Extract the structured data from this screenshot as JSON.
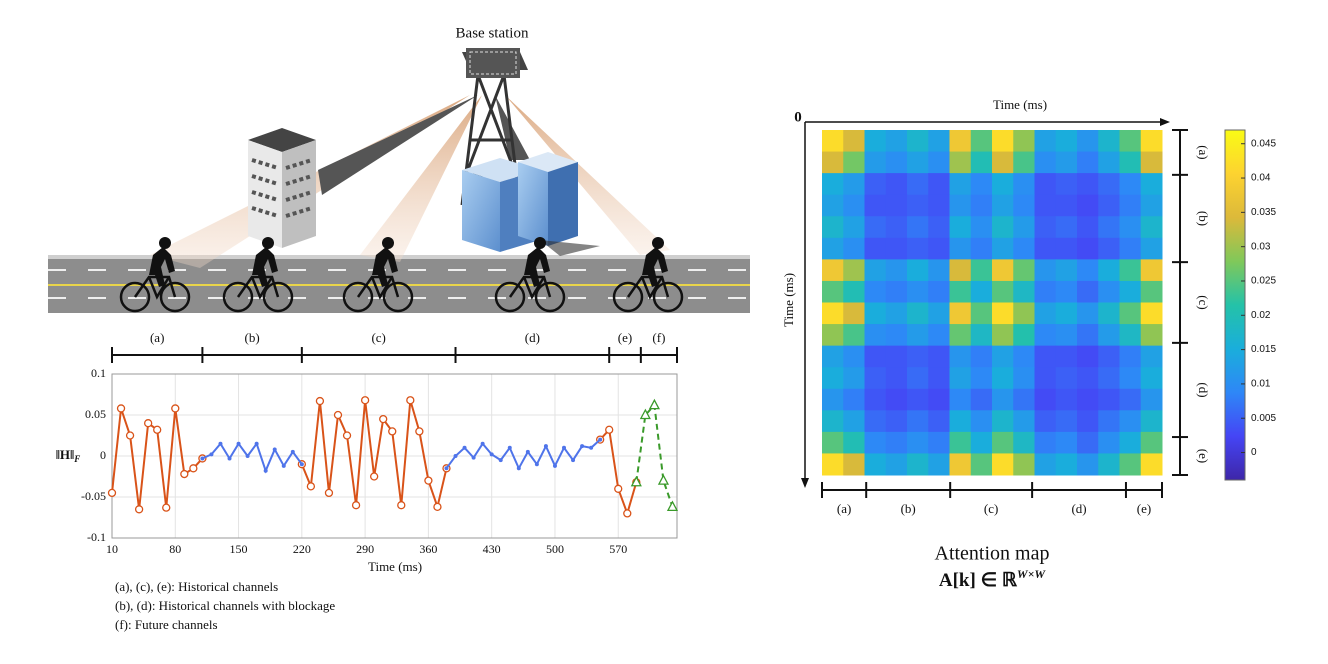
{
  "illustration": {
    "label": "Base station"
  },
  "chart_data": [
    {
      "type": "line",
      "x_label": "Time (ms)",
      "y_label": "‖H‖",
      "y_label_sub": "F",
      "x": [
        10,
        20,
        30,
        40,
        50,
        60,
        70,
        80,
        90,
        100,
        110,
        120,
        130,
        140,
        150,
        160,
        170,
        180,
        190,
        200,
        210,
        220,
        230,
        240,
        250,
        260,
        270,
        280,
        290,
        300,
        310,
        320,
        330,
        340,
        350,
        360,
        370,
        380,
        390,
        400,
        410,
        420,
        430,
        440,
        450,
        460,
        470,
        480,
        490,
        500,
        510,
        520,
        530,
        540,
        550,
        560,
        570,
        580,
        590,
        600,
        610,
        620,
        630
      ],
      "xlim": [
        10,
        635
      ],
      "ylim": [
        -0.1,
        0.1
      ],
      "xticks": [
        10,
        80,
        150,
        220,
        290,
        360,
        430,
        500,
        570
      ],
      "yticks": [
        -0.1,
        -0.05,
        0,
        0.05,
        0.1
      ],
      "grid": true,
      "segments": {
        "labels": [
          "(a)",
          "(b)",
          "(c)",
          "(d)",
          "(e)",
          "(f)"
        ],
        "bounds": [
          10,
          110,
          220,
          390,
          560,
          595,
          635
        ]
      },
      "series": [
        {
          "color": "#d95319",
          "marker": "circle",
          "line_style": "solid",
          "values": [
            -0.045,
            0.058,
            0.025,
            -0.065,
            0.04,
            0.032,
            -0.063,
            0.058,
            -0.022,
            -0.015,
            -0.003,
            null,
            null,
            null,
            null,
            null,
            null,
            null,
            null,
            null,
            null,
            -0.01,
            -0.037,
            0.067,
            -0.045,
            0.05,
            0.025,
            -0.06,
            0.068,
            -0.025,
            0.045,
            0.03,
            -0.06,
            0.068,
            0.03,
            -0.03,
            -0.062,
            -0.015,
            null,
            null,
            null,
            null,
            null,
            null,
            null,
            null,
            null,
            null,
            null,
            null,
            null,
            null,
            null,
            null,
            0.02,
            0.032,
            -0.04,
            -0.07,
            -0.032,
            null,
            null,
            null,
            null
          ]
        },
        {
          "color": "#4f74ea",
          "marker": "dot",
          "line_style": "solid",
          "values": [
            null,
            null,
            null,
            null,
            null,
            null,
            null,
            null,
            null,
            null,
            -0.003,
            0.002,
            0.015,
            -0.003,
            0.015,
            0,
            0.015,
            -0.018,
            0.008,
            -0.012,
            0.005,
            -0.01,
            null,
            null,
            null,
            null,
            null,
            null,
            null,
            null,
            null,
            null,
            null,
            null,
            null,
            null,
            null,
            -0.015,
            0,
            0.01,
            -0.002,
            0.015,
            0.002,
            -0.005,
            0.01,
            -0.015,
            0.005,
            -0.01,
            0.012,
            -0.012,
            0.01,
            -0.005,
            0.012,
            0.01,
            0.02,
            null,
            null,
            null,
            null,
            null,
            null,
            null,
            null
          ]
        },
        {
          "color": "#3a9a2a",
          "marker": "triangle",
          "line_style": "dashed",
          "values": [
            null,
            null,
            null,
            null,
            null,
            null,
            null,
            null,
            null,
            null,
            null,
            null,
            null,
            null,
            null,
            null,
            null,
            null,
            null,
            null,
            null,
            null,
            null,
            null,
            null,
            null,
            null,
            null,
            null,
            null,
            null,
            null,
            null,
            null,
            null,
            null,
            null,
            null,
            null,
            null,
            null,
            null,
            null,
            null,
            null,
            null,
            null,
            null,
            null,
            null,
            null,
            null,
            null,
            null,
            null,
            null,
            null,
            null,
            -0.032,
            0.05,
            0.062,
            -0.03,
            -0.062
          ]
        }
      ]
    },
    {
      "type": "heatmap",
      "x_label": "Time (ms)",
      "y_label": "Time (ms)",
      "origin_label": "0",
      "title": "Attention map",
      "subtitle": "A[k] ∈ ℝ",
      "subtitle_sup": "W×W",
      "x_segments": [
        "(a)",
        "(b)",
        "(c)",
        "(d)",
        "(e)"
      ],
      "y_segments": [
        "(a)",
        "(b)",
        "(c)",
        "(d)",
        "(e)"
      ],
      "clim": [
        -0.004,
        0.047
      ],
      "cticks": [
        0,
        0.005,
        0.01,
        0.015,
        0.02,
        0.025,
        0.03,
        0.035,
        0.04,
        0.045
      ],
      "colormap": [
        "#3e26a8",
        "#4545f5",
        "#2e87f7",
        "#1aaedb",
        "#24c2a8",
        "#80c85a",
        "#dcb93a",
        "#fdd330",
        "#f9fb15"
      ],
      "matrix": [
        [
          0.042,
          0.034,
          0.015,
          0.013,
          0.017,
          0.013,
          0.038,
          0.025,
          0.042,
          0.029,
          0.013,
          0.015,
          0.011,
          0.017,
          0.025,
          0.042
        ],
        [
          0.034,
          0.027,
          0.012,
          0.01,
          0.013,
          0.01,
          0.03,
          0.02,
          0.034,
          0.024,
          0.01,
          0.012,
          0.008,
          0.013,
          0.02,
          0.034
        ],
        [
          0.015,
          0.012,
          0.005,
          0.004,
          0.006,
          0.004,
          0.013,
          0.009,
          0.015,
          0.01,
          0.004,
          0.005,
          0.004,
          0.006,
          0.009,
          0.015
        ],
        [
          0.013,
          0.01,
          0.004,
          0.004,
          0.005,
          0.004,
          0.011,
          0.008,
          0.013,
          0.009,
          0.004,
          0.004,
          0.003,
          0.005,
          0.008,
          0.013
        ],
        [
          0.017,
          0.013,
          0.006,
          0.005,
          0.007,
          0.005,
          0.015,
          0.01,
          0.017,
          0.012,
          0.005,
          0.006,
          0.004,
          0.007,
          0.01,
          0.017
        ],
        [
          0.013,
          0.01,
          0.004,
          0.004,
          0.005,
          0.004,
          0.011,
          0.008,
          0.013,
          0.009,
          0.004,
          0.004,
          0.003,
          0.005,
          0.008,
          0.013
        ],
        [
          0.038,
          0.03,
          0.013,
          0.011,
          0.015,
          0.011,
          0.034,
          0.023,
          0.038,
          0.026,
          0.011,
          0.013,
          0.009,
          0.015,
          0.023,
          0.038
        ],
        [
          0.025,
          0.02,
          0.009,
          0.008,
          0.01,
          0.008,
          0.023,
          0.015,
          0.025,
          0.018,
          0.008,
          0.009,
          0.006,
          0.01,
          0.015,
          0.025
        ],
        [
          0.042,
          0.034,
          0.015,
          0.013,
          0.017,
          0.013,
          0.038,
          0.025,
          0.042,
          0.029,
          0.013,
          0.015,
          0.011,
          0.017,
          0.025,
          0.042
        ],
        [
          0.029,
          0.024,
          0.01,
          0.009,
          0.012,
          0.009,
          0.026,
          0.018,
          0.029,
          0.021,
          0.009,
          0.01,
          0.007,
          0.012,
          0.018,
          0.029
        ],
        [
          0.013,
          0.01,
          0.004,
          0.004,
          0.005,
          0.004,
          0.011,
          0.008,
          0.013,
          0.009,
          0.004,
          0.004,
          0.003,
          0.005,
          0.008,
          0.013
        ],
        [
          0.015,
          0.012,
          0.005,
          0.004,
          0.006,
          0.004,
          0.013,
          0.009,
          0.015,
          0.01,
          0.004,
          0.005,
          0.004,
          0.006,
          0.009,
          0.015
        ],
        [
          0.011,
          0.008,
          0.004,
          0.003,
          0.004,
          0.003,
          0.009,
          0.006,
          0.011,
          0.007,
          0.003,
          0.004,
          0.003,
          0.004,
          0.006,
          0.011
        ],
        [
          0.017,
          0.013,
          0.006,
          0.005,
          0.007,
          0.005,
          0.015,
          0.01,
          0.017,
          0.012,
          0.005,
          0.006,
          0.004,
          0.007,
          0.01,
          0.017
        ],
        [
          0.025,
          0.02,
          0.009,
          0.008,
          0.01,
          0.008,
          0.023,
          0.015,
          0.025,
          0.018,
          0.008,
          0.009,
          0.006,
          0.01,
          0.015,
          0.025
        ],
        [
          0.042,
          0.034,
          0.015,
          0.013,
          0.017,
          0.013,
          0.038,
          0.025,
          0.042,
          0.029,
          0.013,
          0.015,
          0.011,
          0.017,
          0.025,
          0.042
        ]
      ]
    }
  ],
  "captions": [
    "(a), (c), (e): Historical channels",
    "(b), (d): Historical channels with blockage",
    "(f): Future channels"
  ]
}
